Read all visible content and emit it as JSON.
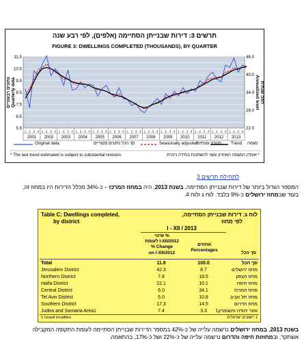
{
  "figure": {
    "title_he": "תרשים 3: דירות שבנייתן הסתיימה (אלפים), לפי רבע שנה",
    "title_en": "FIGURE 3: DWELLINGS COMPLETED (THOUSANDS), BY QUARTER",
    "left_axis_he": "נתונים רבעוניים",
    "left_axis_en": "Quarterly data",
    "right_axis_he": "רמה שנתית",
    "right_axis_en": "Annualized level",
    "legend": {
      "original_en": "Original data",
      "original_he": "סך הכל נתונים מקוריים",
      "seasonal_en": "Seasonally adjusted",
      "seasonal_he": "מנוכה עונתיות",
      "trend_en": "Trend",
      "trend_he": "מגמה"
    },
    "note_en": "* The last trend estimated is subject to substantial revision.",
    "note_he": "* אומדן המגמה האחרון עשוי להשתנות במידה ניכרת.",
    "colors": {
      "original": "#3050d8",
      "seasonal": "#e0202a",
      "trend": "#000000",
      "plot_bg": "#ccd6e2"
    }
  },
  "chart_data": {
    "type": "line",
    "title": "FIGURE 3: DWELLINGS COMPLETED (THOUSANDS), BY QUARTER",
    "xlabel": "",
    "ylabel": "Quarterly data",
    "y2label": "Annualized level",
    "years": [
      "2001",
      "2002",
      "2003",
      "2004",
      "2005",
      "2006",
      "2007",
      "2008",
      "2009",
      "2010",
      "2011",
      "2012",
      "2013"
    ],
    "quarter_labels": [
      "1",
      "2",
      "3",
      "4"
    ],
    "ylim": [
      5.5,
      11.5
    ],
    "yticks": [
      5.5,
      6.5,
      7.5,
      8.5,
      9.5,
      10.5,
      11.5
    ],
    "y2lim": [
      22.0,
      46.0
    ],
    "y2ticks": [
      22.0,
      28.0,
      34.0,
      40.0,
      46.0
    ],
    "grid": true,
    "series": [
      {
        "name": "Original data",
        "style": "solid",
        "values": [
          8.8,
          7.2,
          10.3,
          10.0,
          10.9,
          11.6,
          9.9,
          10.5,
          10.1,
          9.1,
          10.4,
          8.7,
          8.8,
          9.4,
          8.9,
          9.2,
          9.1,
          8.2,
          8.8,
          9.1,
          8.4,
          8.1,
          8.9,
          8.0,
          7.9,
          7.4,
          7.6,
          7.0,
          6.8,
          7.3,
          7.6,
          8.0,
          7.5,
          8.4,
          8.0,
          8.6,
          8.2,
          8.9,
          8.4,
          8.8,
          8.6,
          9.5,
          9.2,
          9.9,
          10.2,
          9.6,
          9.4,
          10.8,
          10.6,
          11.4,
          10.2,
          10.8,
          10.7
        ]
      },
      {
        "name": "Seasonally adjusted",
        "style": "dashed",
        "values": [
          8.3,
          8.8,
          9.6,
          10.4,
          10.6,
          10.9,
          10.5,
          10.2,
          10.0,
          9.6,
          9.7,
          9.3,
          9.2,
          9.3,
          9.2,
          9.1,
          8.9,
          8.7,
          8.7,
          8.6,
          8.4,
          8.2,
          8.4,
          8.1,
          7.9,
          7.7,
          7.5,
          7.3,
          7.1,
          7.3,
          7.5,
          7.7,
          7.8,
          8.1,
          8.2,
          8.4,
          8.4,
          8.6,
          8.6,
          8.7,
          8.8,
          9.1,
          9.3,
          9.6,
          9.7,
          9.8,
          9.8,
          10.2,
          10.3,
          10.6,
          10.4,
          10.6,
          10.6
        ]
      },
      {
        "name": "Trend",
        "style": "solid",
        "values": [
          8.0,
          8.6,
          9.4,
          10.1,
          10.5,
          10.6,
          10.5,
          10.3,
          10.0,
          9.8,
          9.6,
          9.4,
          9.3,
          9.2,
          9.2,
          9.1,
          8.9,
          8.8,
          8.7,
          8.6,
          8.4,
          8.3,
          8.2,
          8.1,
          7.9,
          7.7,
          7.5,
          7.3,
          7.2,
          7.3,
          7.5,
          7.6,
          7.8,
          8.0,
          8.2,
          8.3,
          8.4,
          8.5,
          8.6,
          8.7,
          8.8,
          9.0,
          9.2,
          9.4,
          9.6,
          9.7,
          9.8,
          10.0,
          10.2,
          10.4,
          10.5,
          10.6,
          10.7
        ]
      }
    ]
  },
  "link_text": "לתחילת תרשים 3",
  "para1": {
    "line1_a": "המספר הגדול ביותר של דירות שבנייתן הסתיימה, ",
    "line1_b": "בשנת 2013",
    "line1_c": ", היה ",
    "line1_d": "במחוז המרכז",
    "line1_e": " – כ-34% מכלל הדירות היו במחוז זה,",
    "line2_a": "בעוד שב",
    "line2_b": "מחוז ירושלים",
    "line2_c": " כ-9% בלבד. לוח ג ולוח 4."
  },
  "table": {
    "title_en_1": "Table C: Dwellings completed,",
    "title_en_2": "by district",
    "title_he_1": "לוח ג: דירות שבנייתן הסתיימה,",
    "title_he_2": "לפי מחוז",
    "period": "I - XII / 2013",
    "col_change_he_1": "% שינוי",
    "col_change_he_2": "לעומת I-XII/2012",
    "col_change_en_1": "% Change",
    "col_change_en_2": "on I-XII/2012",
    "col_pct_he": "אחוזים",
    "col_pct_en": "Percentages",
    "col_district_he": "סך הכל",
    "rows": [
      {
        "en": "Total",
        "change": "11.8",
        "pct": "100.0",
        "he": "סך הכל",
        "bold": true
      },
      {
        "en": "Jerusalem District",
        "change": "42.3",
        "pct": "8.7",
        "he": "מחוז ירושלים"
      },
      {
        "en": "Northern District",
        "change": "7.8",
        "pct": "18.5",
        "he": "מחוז הצפון"
      },
      {
        "en": "Haifa District",
        "change": "22.1",
        "pct": "10.1",
        "he": "מחוז חיפה"
      },
      {
        "en": "Central District",
        "change": "6.0",
        "pct": "34.1",
        "he": "מחוז המרכז"
      },
      {
        "en": "Tel Aviv District",
        "change": "5.0",
        "pct": "10.8",
        "he": "מחוז תל אביב"
      },
      {
        "en": "Southern District",
        "change": "17.3",
        "pct": "14.5",
        "he": "מחוז הדרום"
      },
      {
        "en": "Judea and Samaria Area1",
        "change": "7.4",
        "pct": "3.3",
        "he": "אזור יהודה והשומרון1"
      }
    ],
    "foot_en": "1 Israeli localities",
    "foot_he": "1 יישובים ישראלים"
  },
  "para2": {
    "line1_a": "בשנת 2013",
    "line1_b": ", ",
    "line1_c": "במחוז ירושלים",
    "line1_d": " נרשמה עלייה של כ-42% במספר הדירות שבנייתן הסתיימה לעומת התקופה המקבילה",
    "line2_a": "אשתקד, וב",
    "line2_b": "מחוזות חיפה והדרום",
    "line2_c": " נרשמה עלייה של כ-22% ושל כ-17%, בהתאמה."
  }
}
